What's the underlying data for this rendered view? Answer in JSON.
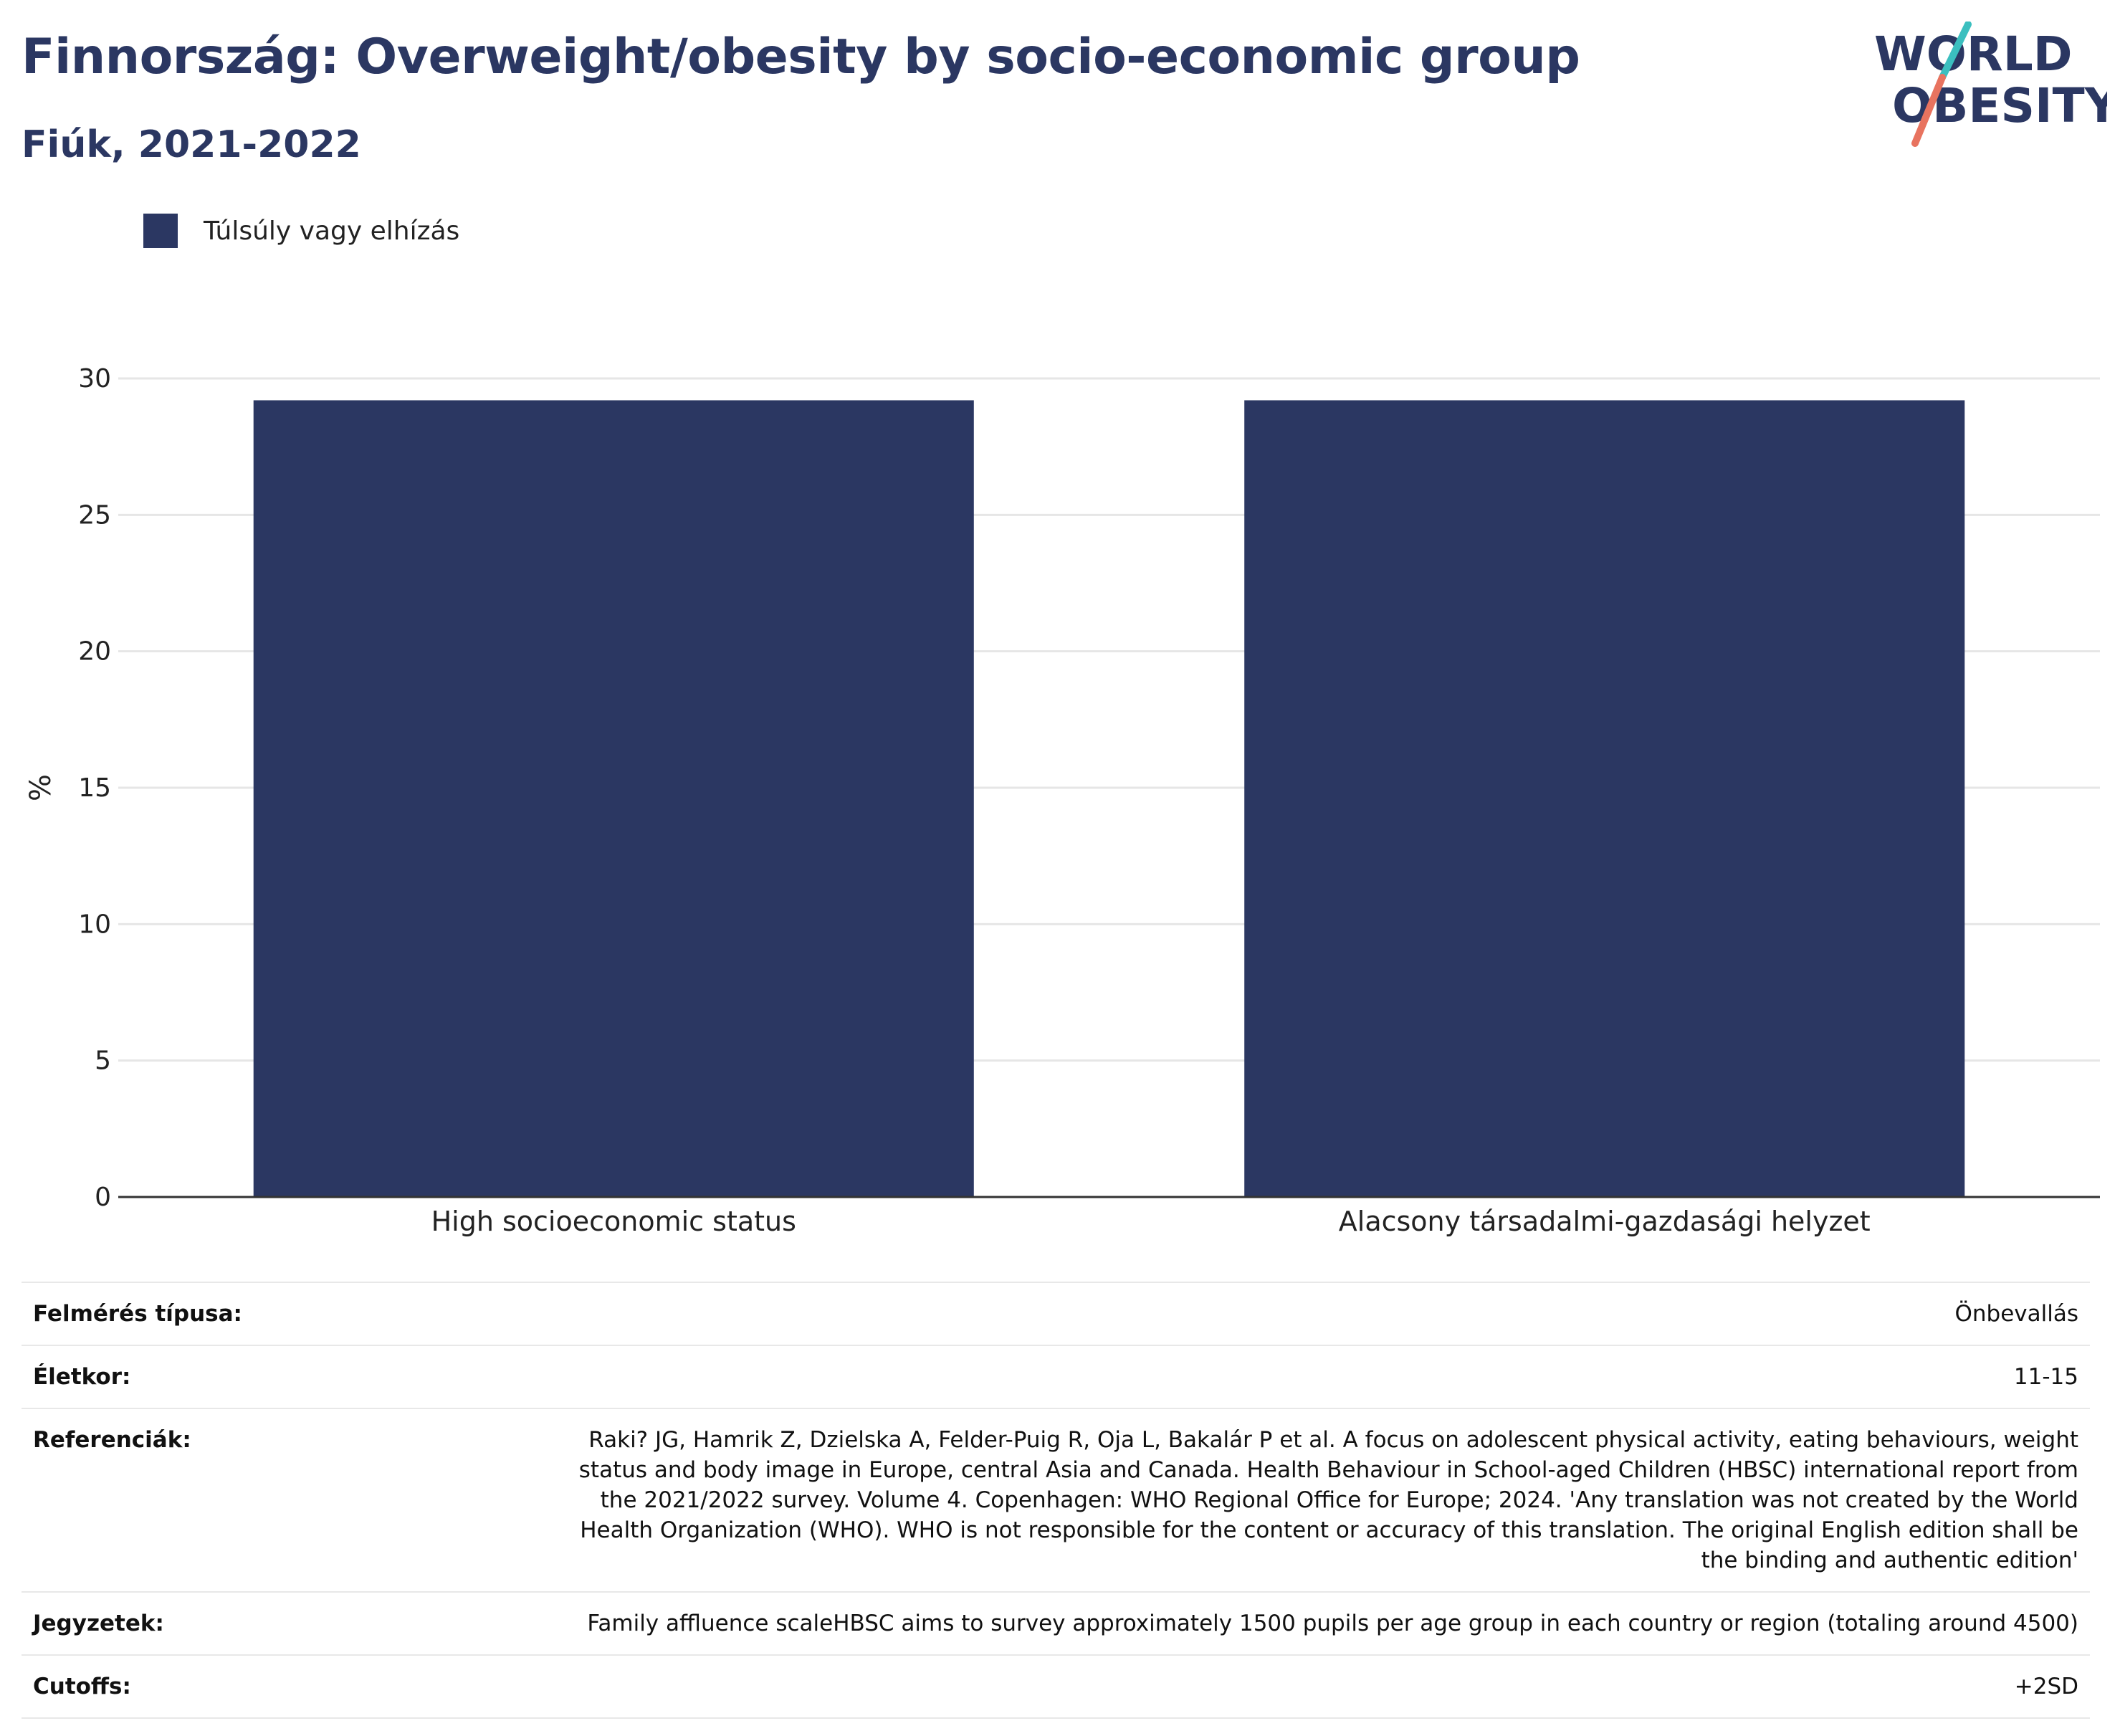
{
  "header": {
    "title": "Finnország: Overweight/obesity by socio-economic group",
    "subtitle": "Fiúk, 2021-2022"
  },
  "logo": {
    "line1": "WORLD",
    "line2": "OBESITY"
  },
  "colors": {
    "bar": "#2b3762",
    "text_dark": "#2b3762",
    "logo_teal": "#3bbfbf",
    "logo_coral": "#e8735f"
  },
  "chart_data": {
    "type": "bar",
    "categories": [
      "High socioeconomic status",
      "Alacsony társadalmi-gazdasági helyzet"
    ],
    "series": [
      {
        "name": "Túlsúly vagy elhízás",
        "values": [
          29.2,
          29.2
        ]
      }
    ],
    "ylabel": "%",
    "ylim": [
      0,
      30
    ],
    "yticks": [
      0,
      5,
      10,
      15,
      20,
      25,
      30
    ],
    "grid": true,
    "legend": "top-left"
  },
  "meta": [
    {
      "key": "Felmérés típusa:",
      "value": "Önbevallás"
    },
    {
      "key": "Életkor:",
      "value": "11-15"
    },
    {
      "key": "Referenciák:",
      "value": "Raki? JG, Hamrik Z, Dzielska A, Felder-Puig R, Oja L, Bakalár P et al. A focus on adolescent physical activity, eating behaviours, weight status and body image in Europe, central Asia and Canada. Health Behaviour in School-aged Children (HBSC) international report from the 2021/2022 survey. Volume 4. Copenhagen: WHO Regional Office for Europe; 2024. 'Any translation was not created by the World Health Organization (WHO). WHO is not responsible for the content or accuracy of this translation. The original English edition shall be the binding and authentic edition'"
    },
    {
      "key": "Jegyzetek:",
      "value": "Family affluence scaleHBSC aims to survey approximately 1500 pupils per age group in each country or region (totaling around 4500)"
    },
    {
      "key": "Cutoffs:",
      "value": "+2SD"
    }
  ]
}
